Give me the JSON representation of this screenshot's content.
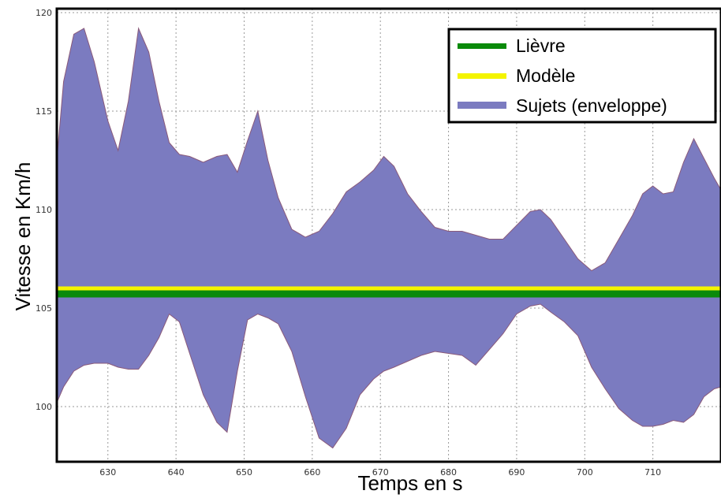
{
  "colors": {
    "envelope": "#7b7bc0",
    "envelope_edge": "#8a5a7a",
    "lievre": "#0a8a0a",
    "modele": "#f4f400",
    "grid": "#9a9a9a",
    "frame": "#000000"
  },
  "chart_data": {
    "type": "area",
    "xlabel": "Temps en s",
    "ylabel": "Vitesse en Km/h",
    "xlim": [
      622.5,
      720
    ],
    "ylim": [
      97.2,
      120.2
    ],
    "x_ticks": [
      "630",
      "640",
      "650",
      "660",
      "670",
      "680",
      "690",
      "700",
      "710"
    ],
    "y_ticks": [
      "100",
      "105",
      "110",
      "115",
      "120"
    ],
    "grid": true,
    "legend_position": "top-right",
    "legend": [
      "Lièvre",
      "Modèle",
      "Sujets (enveloppe)"
    ],
    "series": [
      {
        "name": "Lièvre",
        "type": "line",
        "x": [
          622.5,
          720
        ],
        "y": [
          105.8,
          105.8
        ]
      },
      {
        "name": "Modèle",
        "type": "line",
        "x": [
          622.5,
          720
        ],
        "y": [
          106.0,
          106.0
        ]
      },
      {
        "name": "Sujets (enveloppe)",
        "type": "envelope",
        "x": [
          622.5,
          623.5,
          625,
          626.5,
          628,
          630,
          631.5,
          633,
          634.5,
          636,
          637.5,
          639,
          640.5,
          642,
          644,
          646,
          647.5,
          649,
          650.5,
          652,
          653.5,
          655,
          657,
          659,
          661,
          663,
          665,
          667,
          669,
          670.5,
          672,
          674,
          676,
          678,
          680,
          682,
          684,
          686,
          688,
          690,
          692,
          693.5,
          695,
          697,
          699,
          701,
          703,
          705,
          707,
          708.5,
          710,
          711.5,
          713,
          714.5,
          716,
          717.5,
          719,
          720
        ],
        "upper": [
          112.5,
          116.5,
          118.9,
          119.2,
          117.5,
          114.5,
          113.0,
          115.5,
          119.2,
          118.0,
          115.5,
          113.4,
          112.8,
          112.7,
          112.4,
          112.7,
          112.8,
          111.9,
          113.5,
          115.0,
          112.5,
          110.6,
          109.0,
          108.6,
          108.9,
          109.8,
          110.9,
          111.4,
          112.0,
          112.7,
          112.2,
          110.8,
          109.9,
          109.1,
          108.9,
          108.9,
          108.7,
          108.5,
          108.5,
          109.2,
          109.9,
          110.0,
          109.5,
          108.5,
          107.5,
          106.9,
          107.3,
          108.5,
          109.7,
          110.8,
          111.2,
          110.8,
          110.9,
          112.4,
          113.6,
          112.6,
          111.6,
          111.0
        ],
        "lower": [
          100.2,
          101.0,
          101.8,
          102.1,
          102.2,
          102.2,
          102.0,
          101.9,
          101.9,
          102.6,
          103.5,
          104.7,
          104.3,
          102.7,
          100.6,
          99.2,
          98.7,
          101.8,
          104.4,
          104.7,
          104.5,
          104.2,
          102.8,
          100.5,
          98.4,
          97.9,
          98.9,
          100.6,
          101.4,
          101.8,
          102.0,
          102.3,
          102.6,
          102.8,
          102.7,
          102.6,
          102.1,
          102.9,
          103.7,
          104.7,
          105.1,
          105.2,
          104.8,
          104.3,
          103.6,
          102.0,
          100.9,
          99.9,
          99.3,
          99.0,
          99.0,
          99.1,
          99.3,
          99.2,
          99.6,
          100.5,
          100.9,
          101.0
        ]
      }
    ]
  }
}
